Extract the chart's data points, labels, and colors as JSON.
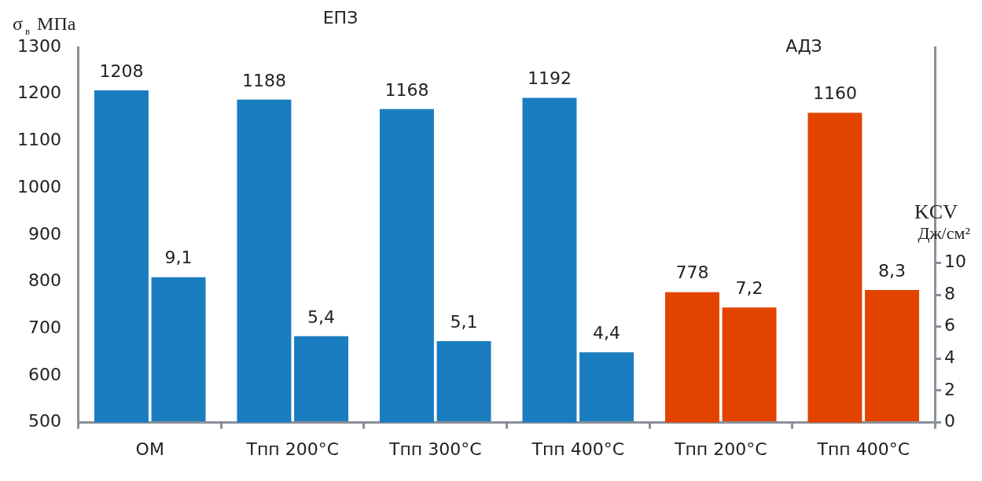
{
  "chart_data": {
    "type": "bar",
    "categories": [
      "ОМ",
      "Тпп 200°C",
      "Тпп 300°C",
      "Тпп 400°C",
      "Тпп 200°C",
      "Тпп 400°C"
    ],
    "series": [
      {
        "colors": [
          "#1a7dc0",
          "#1a7dc0",
          "#1a7dc0",
          "#1a7dc0",
          "#e24400",
          "#e24400"
        ],
        "values": [
          1208,
          1188,
          1168,
          1192,
          778,
          1160
        ],
        "value_labels": [
          "1208",
          "1188",
          "1168",
          "1192",
          "778",
          "1160"
        ]
      },
      {
        "axis": "y2",
        "colors": [
          "#1a7dc0",
          "#1a7dc0",
          "#1a7dc0",
          "#1a7dc0",
          "#e24400",
          "#e24400"
        ],
        "values": [
          9.1,
          5.4,
          5.1,
          4.4,
          7.2,
          8.3
        ],
        "value_labels": [
          "9,1",
          "5,4",
          "5,1",
          "4,4",
          "7,2",
          "8,3"
        ]
      }
    ],
    "ylabel": "σ$_{в}$ МПа",
    "y2label": "KCV Дж/см²",
    "ylim": [
      500,
      1300
    ],
    "yticks": [
      500,
      600,
      700,
      800,
      900,
      1000,
      1100,
      1200,
      1300
    ],
    "y2lim": [
      0,
      23.5
    ],
    "y2ticks": [
      0,
      2,
      4,
      6,
      8,
      10
    ],
    "annotations": [
      "ЕПЗ",
      "АДЗ"
    ],
    "legend": false
  }
}
